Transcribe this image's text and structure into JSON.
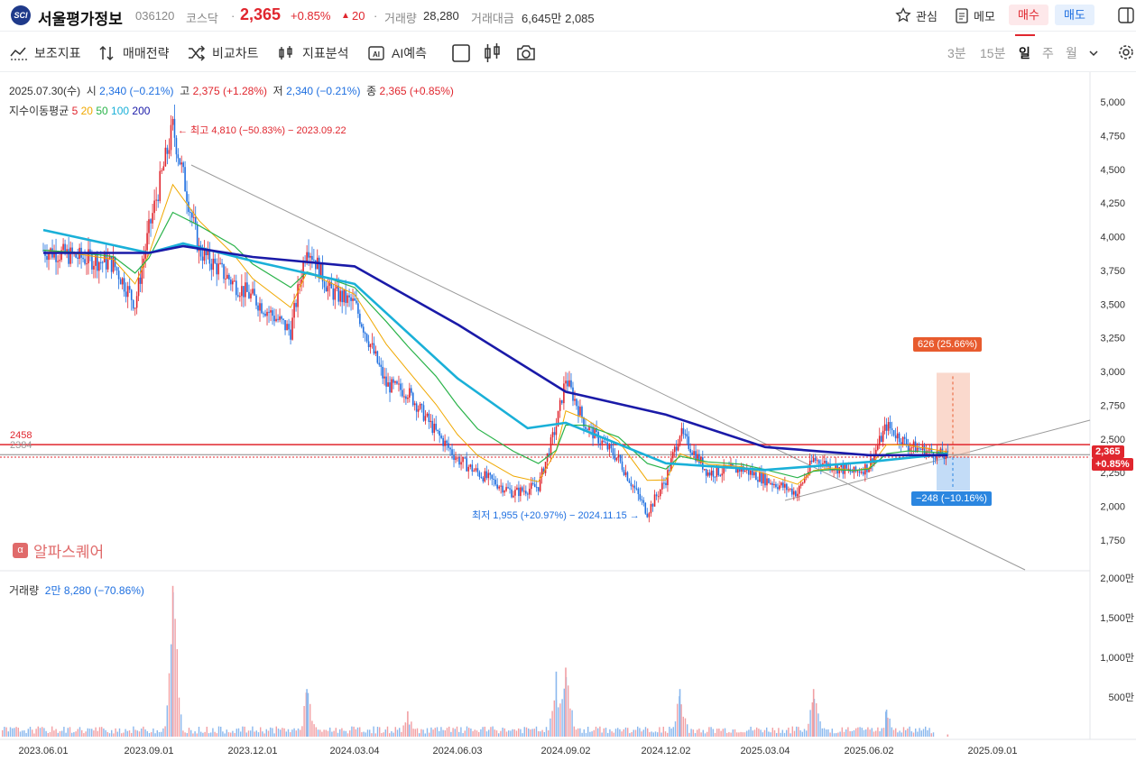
{
  "header": {
    "logo_text": "SCI",
    "stock_name": "서울평가정보",
    "code": "036120",
    "market": "코스닥",
    "price": "2,365",
    "change_pct": "+0.85%",
    "change_arrow": "▲",
    "change_abs": "20",
    "volume_label": "거래량",
    "volume_value": "28,280",
    "amount_label": "거래대금",
    "amount_value": "6,645만 2,085",
    "watch_label": "관심",
    "memo_label": "메모",
    "buy_label": "매수",
    "sell_label": "매도"
  },
  "toolbar": {
    "tools": [
      "보조지표",
      "매매전략",
      "비교차트",
      "지표분석",
      "AI예측"
    ],
    "periods": [
      "3분",
      "15분",
      "일",
      "주",
      "월"
    ],
    "selected_period": "일"
  },
  "info": {
    "date": "2025.07.30(수)",
    "open_label": "시",
    "open": "2,340 (−0.21%)",
    "high_label": "고",
    "high": "2,375 (+1.28%)",
    "low_label": "저",
    "low": "2,340 (−0.21%)",
    "close_label": "종",
    "close": "2,365 (+0.85%)"
  },
  "ma_legend": {
    "label": "지수이동평균",
    "items": [
      {
        "text": "5",
        "color": "#e0262e"
      },
      {
        "text": "20",
        "color": "#f0a800"
      },
      {
        "text": "50",
        "color": "#2ab34a"
      },
      {
        "text": "100",
        "color": "#1ab0d8"
      },
      {
        "text": "200",
        "color": "#1a1aa8"
      }
    ]
  },
  "annotations": {
    "high": "← 최고 4,810 (−50.83%) − 2023.09.22",
    "low": "최저 1,955 (+20.97%) − 2024.11.15 →",
    "up_box": "626 (25.66%)",
    "down_box": "−248 (−10.16%)",
    "line1": "2458",
    "line2": "2384",
    "price_tag": "2,365",
    "price_tag_pct": "+0.85%"
  },
  "watermark": {
    "icon": "α",
    "text": "알파스퀘어"
  },
  "volume_panel": {
    "label": "거래량",
    "value": "2만 8,280 (−70.86%)"
  },
  "y_axis": [
    "5,000",
    "4,750",
    "4,500",
    "4,250",
    "4,000",
    "3,750",
    "3,500",
    "3,250",
    "3,000",
    "2,750",
    "2,500",
    "2,250",
    "2,000",
    "1,750"
  ],
  "vol_axis": [
    "2,000만",
    "1,500만",
    "1,000만",
    "500만"
  ],
  "x_axis": [
    "2023.06.01",
    "2023.09.01",
    "2023.12.01",
    "2024.03.04",
    "2024.06.03",
    "2024.09.02",
    "2024.12.02",
    "2025.03.04",
    "2025.06.02",
    "2025.09.01"
  ],
  "colors": {
    "up": "#e0262e",
    "down": "#1e6fe0",
    "accent": "#e0262e"
  },
  "chart_data": {
    "type": "line",
    "title": "",
    "price_points": [
      [
        "2023.06.01",
        3900
      ],
      [
        "2023.07.01",
        3850
      ],
      [
        "2023.08.01",
        3800
      ],
      [
        "2023.08.20",
        3500
      ],
      [
        "2023.09.01",
        4050
      ],
      [
        "2023.09.22",
        4810
      ],
      [
        "2023.10.15",
        3900
      ],
      [
        "2023.11.15",
        3650
      ],
      [
        "2023.12.01",
        3550
      ],
      [
        "2024.01.05",
        3300
      ],
      [
        "2024.01.20",
        3950
      ],
      [
        "2024.02.10",
        3600
      ],
      [
        "2024.03.04",
        3500
      ],
      [
        "2024.04.01",
        2900
      ],
      [
        "2024.04.20",
        2850
      ],
      [
        "2024.05.15",
        2550
      ],
      [
        "2024.06.03",
        2350
      ],
      [
        "2024.06.20",
        2250
      ],
      [
        "2024.07.20",
        2100
      ],
      [
        "2024.08.10",
        2150
      ],
      [
        "2024.08.25",
        2600
      ],
      [
        "2024.09.02",
        2950
      ],
      [
        "2024.09.20",
        2600
      ],
      [
        "2024.10.20",
        2350
      ],
      [
        "2024.11.15",
        1955
      ],
      [
        "2024.12.02",
        2200
      ],
      [
        "2024.12.15",
        2550
      ],
      [
        "2025.01.10",
        2250
      ],
      [
        "2025.02.10",
        2280
      ],
      [
        "2025.03.04",
        2200
      ],
      [
        "2025.04.01",
        2100
      ],
      [
        "2025.04.15",
        2350
      ],
      [
        "2025.05.01",
        2300
      ],
      [
        "2025.05.20",
        2250
      ],
      [
        "2025.06.02",
        2300
      ],
      [
        "2025.06.15",
        2600
      ],
      [
        "2025.07.01",
        2450
      ],
      [
        "2025.07.30",
        2365
      ]
    ],
    "ema200_points": [
      [
        "2023.06.01",
        3880
      ],
      [
        "2023.09.01",
        3880
      ],
      [
        "2023.10.01",
        3930
      ],
      [
        "2023.12.01",
        3850
      ],
      [
        "2024.03.04",
        3780
      ],
      [
        "2024.06.03",
        3350
      ],
      [
        "2024.09.02",
        2850
      ],
      [
        "2024.12.02",
        2680
      ],
      [
        "2025.03.04",
        2440
      ],
      [
        "2025.06.02",
        2380
      ],
      [
        "2025.07.30",
        2380
      ]
    ],
    "ema100_points": [
      [
        "2023.06.01",
        4050
      ],
      [
        "2023.09.01",
        3880
      ],
      [
        "2023.10.01",
        3950
      ],
      [
        "2023.12.01",
        3820
      ],
      [
        "2024.03.04",
        3650
      ],
      [
        "2024.06.03",
        2950
      ],
      [
        "2024.08.01",
        2580
      ],
      [
        "2024.09.02",
        2620
      ],
      [
        "2024.12.02",
        2320
      ],
      [
        "2025.03.04",
        2270
      ],
      [
        "2025.06.02",
        2330
      ],
      [
        "2025.07.30",
        2390
      ]
    ],
    "volume_peaks": [
      [
        "2023.09.22",
        1900
      ],
      [
        "2024.01.20",
        600
      ],
      [
        "2024.04.20",
        320
      ],
      [
        "2024.08.25",
        820
      ],
      [
        "2024.09.02",
        870
      ],
      [
        "2024.12.15",
        600
      ],
      [
        "2025.04.15",
        600
      ],
      [
        "2025.06.15",
        340
      ],
      [
        "2025.07.30",
        28
      ]
    ],
    "ylabel": "",
    "ylim": [
      1750,
      5000
    ],
    "volume_unit": "만",
    "volume_ylim": [
      0,
      2000
    ],
    "horizontal_lines": [
      2458,
      2384
    ],
    "last_close": 2365,
    "target_up": 2991,
    "target_down": 2117,
    "legend_placement": "top-left"
  }
}
